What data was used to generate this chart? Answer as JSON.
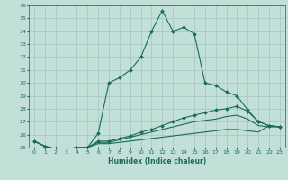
{
  "title": "",
  "xlabel": "Humidex (Indice chaleur)",
  "xlim": [
    -0.5,
    23.5
  ],
  "ylim": [
    25,
    36
  ],
  "xticks": [
    0,
    1,
    2,
    3,
    4,
    5,
    6,
    7,
    8,
    9,
    10,
    11,
    12,
    13,
    14,
    15,
    16,
    17,
    18,
    19,
    20,
    21,
    22,
    23
  ],
  "yticks": [
    25,
    26,
    27,
    28,
    29,
    30,
    31,
    32,
    33,
    34,
    35,
    36
  ],
  "bg_color": "#c2e0d8",
  "line_color": "#1a6b5a",
  "grid_color": "#9bbfba",
  "line1_x": [
    0,
    1,
    2,
    3,
    4,
    5,
    6,
    7,
    8,
    9,
    10,
    11,
    12,
    13,
    14,
    15,
    16,
    17,
    18,
    19,
    20,
    21,
    22,
    23
  ],
  "line1_y": [
    25.5,
    25.1,
    24.9,
    24.9,
    24.9,
    25.0,
    26.1,
    30.0,
    30.4,
    31.0,
    32.0,
    34.0,
    35.6,
    34.0,
    34.3,
    33.8,
    30.0,
    29.8,
    29.3,
    29.0,
    27.9,
    27.0,
    26.7,
    26.6
  ],
  "line2_x": [
    0,
    1,
    2,
    3,
    4,
    5,
    6,
    7,
    8,
    9,
    10,
    11,
    12,
    13,
    14,
    15,
    16,
    17,
    18,
    19,
    20,
    21,
    22,
    23
  ],
  "line2_y": [
    25.5,
    25.1,
    24.9,
    24.9,
    25.0,
    25.0,
    25.5,
    25.5,
    25.7,
    25.9,
    26.2,
    26.4,
    26.7,
    27.0,
    27.3,
    27.5,
    27.7,
    27.9,
    28.0,
    28.2,
    27.8,
    27.0,
    26.7,
    26.6
  ],
  "line3_x": [
    0,
    1,
    2,
    3,
    4,
    5,
    6,
    7,
    8,
    9,
    10,
    11,
    12,
    13,
    14,
    15,
    16,
    17,
    18,
    19,
    20,
    21,
    22,
    23
  ],
  "line3_y": [
    25.5,
    25.1,
    24.9,
    24.9,
    25.0,
    25.0,
    25.4,
    25.4,
    25.6,
    25.8,
    26.0,
    26.2,
    26.4,
    26.6,
    26.8,
    27.0,
    27.1,
    27.2,
    27.4,
    27.5,
    27.2,
    26.7,
    26.6,
    26.6
  ],
  "line4_x": [
    0,
    1,
    2,
    3,
    4,
    5,
    6,
    7,
    8,
    9,
    10,
    11,
    12,
    13,
    14,
    15,
    16,
    17,
    18,
    19,
    20,
    21,
    22,
    23
  ],
  "line4_y": [
    25.5,
    25.1,
    24.9,
    24.9,
    25.0,
    25.0,
    25.3,
    25.3,
    25.4,
    25.5,
    25.6,
    25.7,
    25.8,
    25.9,
    26.0,
    26.1,
    26.2,
    26.3,
    26.4,
    26.4,
    26.3,
    26.2,
    26.7,
    26.6
  ],
  "marker": "D",
  "markersize": 2.0,
  "linewidth": 0.8,
  "tick_fontsize": 4.5,
  "xlabel_fontsize": 5.5
}
